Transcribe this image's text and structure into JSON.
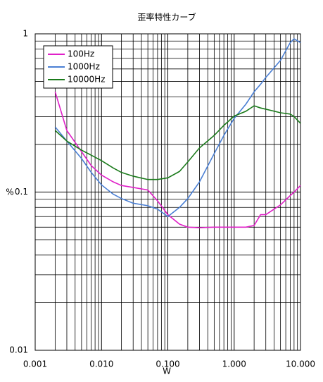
{
  "chart_data": {
    "type": "line",
    "title": "歪率特性カーブ",
    "x_label": "W",
    "y_label": "%",
    "x": [
      0.002,
      0.003,
      0.005,
      0.007,
      0.01,
      0.015,
      0.02,
      0.03,
      0.05,
      0.07,
      0.1,
      0.15,
      0.2,
      0.3,
      0.5,
      0.7,
      1,
      1.5,
      2,
      2.5,
      3,
      5,
      7,
      8,
      10
    ],
    "series": [
      {
        "name": "100Hz",
        "color": "#e020c8",
        "values": [
          0.43,
          0.245,
          0.18,
          0.147,
          0.128,
          0.116,
          0.11,
          0.107,
          0.103,
          0.088,
          0.072,
          0.0627,
          0.06,
          0.0595,
          0.06,
          0.06,
          0.06,
          0.06,
          0.0615,
          0.072,
          0.072,
          0.083,
          0.095,
          0.1,
          0.11
        ]
      },
      {
        "name": "1000Hz",
        "color": "#4a7fd4",
        "values": [
          0.258,
          0.21,
          0.163,
          0.133,
          0.111,
          0.097,
          0.091,
          0.085,
          0.082,
          0.078,
          0.07,
          0.08,
          0.091,
          0.116,
          0.175,
          0.228,
          0.292,
          0.359,
          0.43,
          0.48,
          0.53,
          0.68,
          0.88,
          0.93,
          0.88
        ]
      },
      {
        "name": "10000Hz",
        "color": "#1a7a1a",
        "values": [
          0.245,
          0.21,
          0.184,
          0.171,
          0.158,
          0.142,
          0.133,
          0.126,
          0.12,
          0.12,
          0.123,
          0.135,
          0.155,
          0.19,
          0.228,
          0.264,
          0.302,
          0.324,
          0.351,
          0.34,
          0.334,
          0.317,
          0.311,
          0.3,
          0.272
        ]
      }
    ],
    "x_log": true,
    "y_log": true,
    "grid": true,
    "minor_grid": true,
    "legend": "upper left",
    "xlim": [
      0.001,
      10
    ],
    "xticks": [
      0.001,
      {
        "value": 0.01,
        "label": "0.010"
      },
      {
        "value": 0.1,
        "label": "0.100"
      },
      {
        "value": 1,
        "label": "1.000"
      },
      {
        "value": 10,
        "label": "10.000"
      }
    ],
    "ylim": [
      0.01,
      1
    ],
    "yticks": [
      0.01,
      0.1,
      1
    ]
  }
}
